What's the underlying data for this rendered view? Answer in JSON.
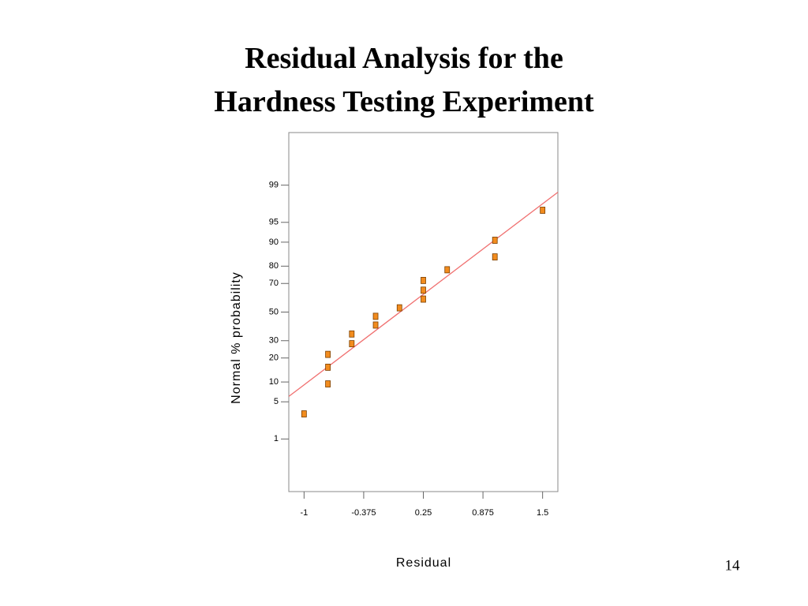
{
  "chart_data": {
    "type": "scatter",
    "title": [
      "Residual Analysis for the",
      "Hardness Testing Experiment"
    ],
    "x_label": "Residual",
    "y_label": "Normal % probability",
    "yscale": "probability",
    "xlim": [
      -1.16,
      1.66
    ],
    "ylim": [
      0.05,
      99.95
    ],
    "xticks": [
      -1,
      -0.375,
      0.25,
      0.875,
      1.5
    ],
    "yticks": [
      1,
      5,
      10,
      20,
      30,
      50,
      70,
      80,
      90,
      95,
      99
    ],
    "color": "#f28c1e",
    "x": [
      -1,
      -0.75,
      -0.75,
      -0.75,
      -0.5,
      -0.5,
      -0.25,
      -0.25,
      0,
      0.25,
      0.25,
      0.25,
      0.5,
      1,
      1,
      1.5
    ],
    "values": [
      3.1,
      9.4,
      15.6,
      21.9,
      28.1,
      34.4,
      40.6,
      46.9,
      53.1,
      59.4,
      65.6,
      71.9,
      78.1,
      84.4,
      90.6,
      96.9
    ],
    "reference_line": {
      "color": "#f07070",
      "x": [
        -1.16,
        1.66
      ],
      "values": [
        6.1,
        98.6
      ]
    }
  },
  "page_number": "14"
}
